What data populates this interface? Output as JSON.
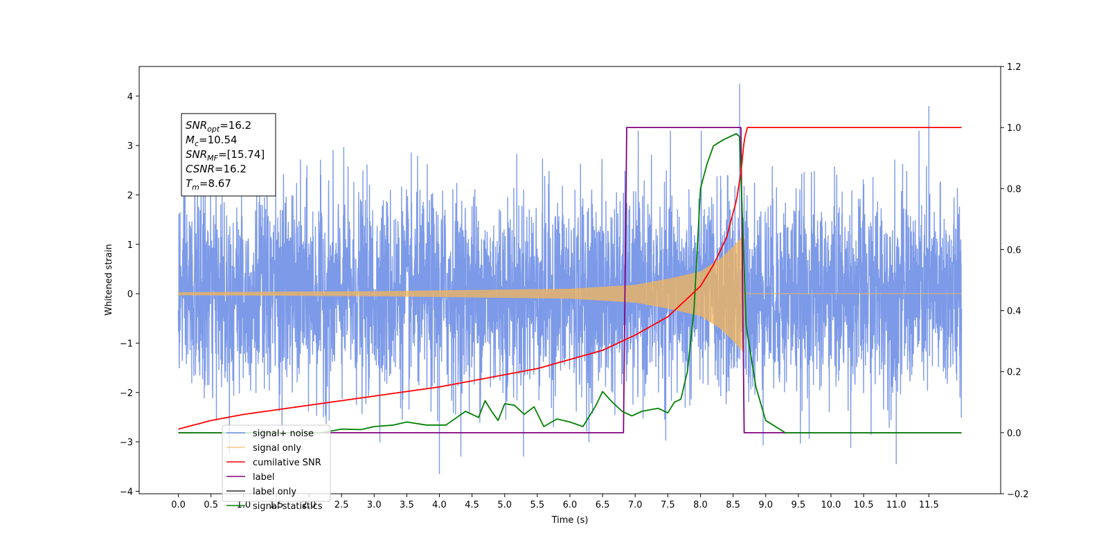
{
  "chart_data": {
    "type": "line",
    "xlabel": "Time (s)",
    "ylabel": "Whitened strain",
    "xlim": [
      -0.6,
      12.6
    ],
    "ylim": [
      -4.05,
      4.6
    ],
    "y2lim": [
      -0.2,
      1.2
    ],
    "x_ticks": [
      0.0,
      0.5,
      1.0,
      1.5,
      2.0,
      2.5,
      3.0,
      3.5,
      4.0,
      4.5,
      5.0,
      5.5,
      6.0,
      6.5,
      7.0,
      7.5,
      8.0,
      8.5,
      9.0,
      9.5,
      10.0,
      10.5,
      11.0,
      11.5
    ],
    "x_tick_labels": [
      "0.0",
      "0.5",
      "1.0",
      "1.5",
      "2.0",
      "2.5",
      "3.0",
      "3.5",
      "4.0",
      "4.5",
      "5.0",
      "5.5",
      "6.0",
      "6.5",
      "7.0",
      "7.5",
      "8.0",
      "8.5",
      "9.0",
      "9.5",
      "10.0",
      "10.5",
      "11.0",
      "11.5"
    ],
    "y_ticks": [
      -4,
      -3,
      -2,
      -1,
      0,
      1,
      2,
      3,
      4
    ],
    "y_tick_labels": [
      "−4",
      "−3",
      "−2",
      "−1",
      "0",
      "1",
      "2",
      "3",
      "4"
    ],
    "y2_ticks": [
      -0.2,
      0.0,
      0.2,
      0.4,
      0.6,
      0.8,
      1.0,
      1.2
    ],
    "y2_tick_labels": [
      "−0.2",
      "0.0",
      "0.2",
      "0.4",
      "0.6",
      "0.8",
      "1.0",
      "1.2"
    ],
    "info_box": [
      {
        "sym": "SNR",
        "sub": "opt",
        "value": "=16.2"
      },
      {
        "sym": "M",
        "sub": "c",
        "value": "=10.54"
      },
      {
        "sym": "SNR",
        "sub": "MF",
        "value": "=[15.74]"
      },
      {
        "sym": "CSNR",
        "sub": "",
        "value": "=16.2"
      },
      {
        "sym": "T",
        "sub": "m",
        "value": "=8.67"
      }
    ],
    "legend_position": "lower-left",
    "merger_time": 8.67,
    "series": [
      {
        "name": "signal+ noise",
        "color": "#6f8fe6",
        "axis": "left",
        "kind": "noise",
        "x_range": [
          0.0,
          12.0
        ],
        "spread_sigma": 1.0,
        "notable_peaks": [
          {
            "x": 8.6,
            "y": 4.25
          },
          {
            "x": 11.5,
            "y": 3.8
          },
          {
            "x": 4.0,
            "y": -3.65
          },
          {
            "x": 11.0,
            "y": -3.45
          }
        ]
      },
      {
        "name": "signal only",
        "color": "#f5b55a",
        "axis": "left",
        "kind": "chirp",
        "x_range": [
          0.0,
          12.0
        ],
        "envelope_points": [
          [
            0.0,
            0.03
          ],
          [
            3.0,
            0.05
          ],
          [
            6.0,
            0.1
          ],
          [
            7.0,
            0.18
          ],
          [
            7.5,
            0.3
          ],
          [
            8.0,
            0.45
          ],
          [
            8.3,
            0.7
          ],
          [
            8.5,
            0.95
          ],
          [
            8.6,
            1.1
          ],
          [
            8.67,
            1.2
          ],
          [
            8.68,
            0.0
          ],
          [
            12.0,
            0.0
          ]
        ]
      },
      {
        "name": "cumilative SNR",
        "color": "#ff0000",
        "axis": "right",
        "points": [
          [
            0.0,
            0.012
          ],
          [
            0.5,
            0.04
          ],
          [
            1.0,
            0.06
          ],
          [
            2.0,
            0.09
          ],
          [
            3.0,
            0.12
          ],
          [
            4.0,
            0.15
          ],
          [
            5.0,
            0.19
          ],
          [
            5.5,
            0.21
          ],
          [
            6.0,
            0.24
          ],
          [
            6.5,
            0.27
          ],
          [
            7.0,
            0.32
          ],
          [
            7.5,
            0.38
          ],
          [
            8.0,
            0.48
          ],
          [
            8.2,
            0.55
          ],
          [
            8.4,
            0.64
          ],
          [
            8.55,
            0.76
          ],
          [
            8.62,
            0.85
          ],
          [
            8.67,
            0.96
          ],
          [
            8.72,
            1.0
          ],
          [
            12.0,
            1.0
          ]
        ]
      },
      {
        "name": "label",
        "color": "#800080",
        "axis": "right",
        "points": [
          [
            0.0,
            0.0
          ],
          [
            6.82,
            0.0
          ],
          [
            6.87,
            1.0
          ],
          [
            8.62,
            1.0
          ],
          [
            8.67,
            0.0
          ],
          [
            12.0,
            0.0
          ]
        ]
      },
      {
        "name": "label only",
        "color": "#000000",
        "axis": "right",
        "legend_only": true,
        "points": []
      },
      {
        "name": "signal statistics",
        "color": "#008000",
        "axis": "right",
        "points": [
          [
            0.0,
            0.0
          ],
          [
            2.2,
            0.0
          ],
          [
            2.5,
            0.012
          ],
          [
            2.8,
            0.01
          ],
          [
            3.0,
            0.02
          ],
          [
            3.3,
            0.025
          ],
          [
            3.5,
            0.035
          ],
          [
            3.8,
            0.025
          ],
          [
            4.1,
            0.025
          ],
          [
            4.4,
            0.07
          ],
          [
            4.6,
            0.05
          ],
          [
            4.7,
            0.105
          ],
          [
            4.8,
            0.07
          ],
          [
            4.9,
            0.04
          ],
          [
            5.0,
            0.095
          ],
          [
            5.15,
            0.09
          ],
          [
            5.3,
            0.06
          ],
          [
            5.45,
            0.085
          ],
          [
            5.6,
            0.02
          ],
          [
            5.8,
            0.045
          ],
          [
            6.0,
            0.035
          ],
          [
            6.2,
            0.02
          ],
          [
            6.4,
            0.09
          ],
          [
            6.5,
            0.135
          ],
          [
            6.65,
            0.1
          ],
          [
            6.8,
            0.07
          ],
          [
            6.95,
            0.055
          ],
          [
            7.1,
            0.07
          ],
          [
            7.35,
            0.08
          ],
          [
            7.5,
            0.065
          ],
          [
            7.6,
            0.1
          ],
          [
            7.7,
            0.11
          ],
          [
            7.8,
            0.2
          ],
          [
            7.9,
            0.4
          ],
          [
            8.0,
            0.8
          ],
          [
            8.1,
            0.88
          ],
          [
            8.2,
            0.94
          ],
          [
            8.35,
            0.96
          ],
          [
            8.55,
            0.98
          ],
          [
            8.6,
            0.97
          ],
          [
            8.7,
            0.35
          ],
          [
            8.85,
            0.15
          ],
          [
            9.0,
            0.04
          ],
          [
            9.3,
            0.0
          ],
          [
            12.0,
            0.0
          ]
        ]
      }
    ]
  }
}
